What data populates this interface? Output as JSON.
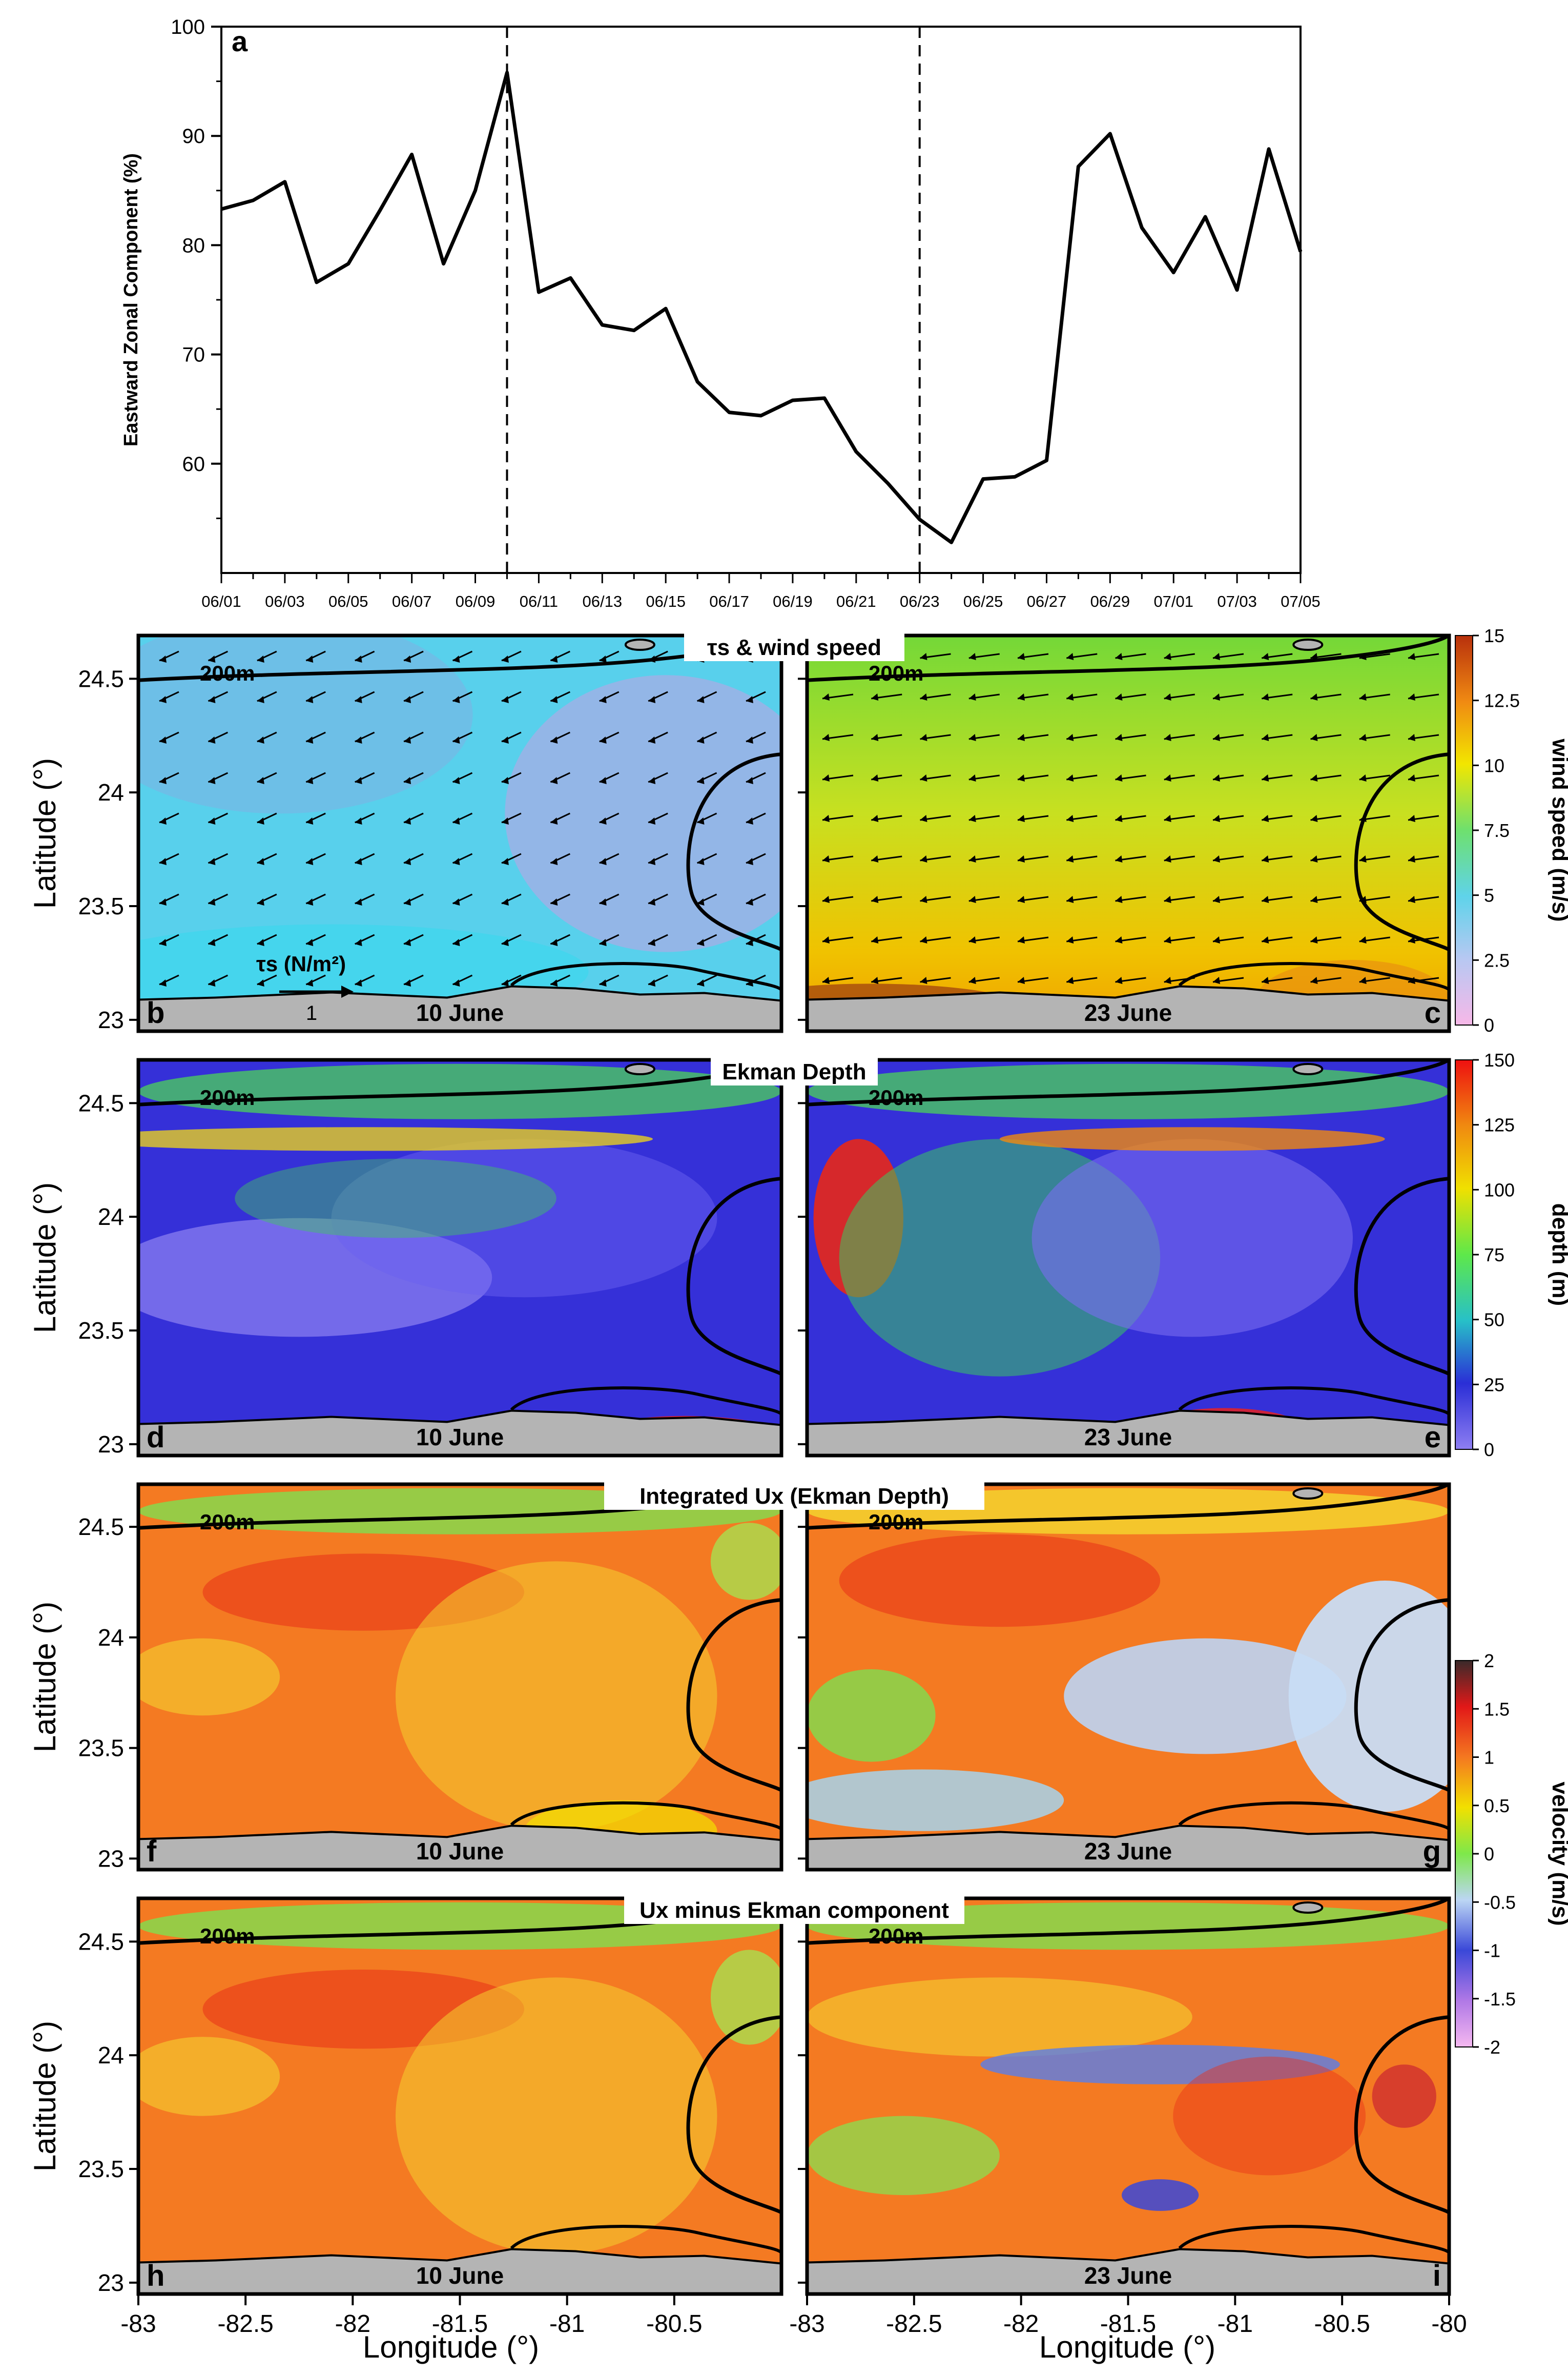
{
  "chart_data": [
    {
      "panel": "a",
      "type": "line",
      "ylabel": "Eastward Zonal Component  (%)",
      "ylim": [
        50,
        100
      ],
      "yticks": [
        "60",
        "70",
        "80",
        "90",
        "100"
      ],
      "xtick_labels": [
        "06/01",
        "06/03",
        "06/05",
        "06/07",
        "06/09",
        "06/11",
        "06/13",
        "06/15",
        "06/17",
        "06/19",
        "06/21",
        "06/23",
        "06/25",
        "06/27",
        "06/29",
        "07/01",
        "07/03",
        "07/05"
      ],
      "x": [
        "06/01",
        "06/02",
        "06/03",
        "06/04",
        "06/05",
        "06/06",
        "06/07",
        "06/08",
        "06/09",
        "06/10",
        "06/11",
        "06/12",
        "06/13",
        "06/14",
        "06/15",
        "06/16",
        "06/17",
        "06/18",
        "06/19",
        "06/20",
        "06/21",
        "06/22",
        "06/23",
        "06/24",
        "06/25",
        "06/26",
        "06/27",
        "06/28",
        "06/29",
        "06/30",
        "07/01",
        "07/02",
        "07/03",
        "07/04",
        "07/05"
      ],
      "series": [
        {
          "values": [
            83.3,
            84.1,
            85.8,
            76.6,
            78.3,
            83.2,
            88.3,
            78.3,
            85.0,
            95.8,
            75.7,
            77.0,
            72.7,
            72.2,
            74.2,
            67.5,
            64.7,
            64.4,
            65.8,
            66.0,
            61.1,
            58.2,
            54.9,
            52.8,
            58.6,
            58.8,
            60.3,
            87.2,
            90.2,
            81.6,
            77.5,
            82.6,
            75.9,
            88.8,
            79.4
          ]
        }
      ],
      "vlines": [
        "06/10",
        "06/23"
      ],
      "grid": false
    },
    {
      "type": "heatmap",
      "title": "τs & wind speed",
      "panels": [
        {
          "letter": "b",
          "date": "10 June"
        },
        {
          "letter": "c",
          "date": "23 June"
        }
      ],
      "isobath": "200m",
      "vector_legend": {
        "label": "τs (N/m²)",
        "scale": "1"
      },
      "colorbar": {
        "label": "wind speed (m/s)",
        "range": [
          0,
          15
        ],
        "ticks": [
          "0",
          "2.5",
          "5",
          "7.5",
          "10",
          "12.5",
          "15"
        ]
      }
    },
    {
      "type": "heatmap",
      "title": "Ekman Depth",
      "panels": [
        {
          "letter": "d",
          "date": "10 June"
        },
        {
          "letter": "e",
          "date": "23 June"
        }
      ],
      "isobath": "200m",
      "colorbar": {
        "label": "depth (m)",
        "range": [
          0,
          150
        ],
        "ticks": [
          "0",
          "25",
          "50",
          "75",
          "100",
          "125",
          "150"
        ]
      }
    },
    {
      "type": "heatmap",
      "title": "Integrated Ux (Ekman Depth)",
      "panels": [
        {
          "letter": "f",
          "date": "10 June"
        },
        {
          "letter": "g",
          "date": "23 June"
        }
      ],
      "isobath": "200m",
      "colorbar": {
        "label": "velocity (m/s)",
        "range": [
          -2,
          2
        ],
        "ticks": [
          "-2",
          "-1.5",
          "-1",
          "-0.5",
          "0",
          "0.5",
          "1",
          "1.5",
          "2"
        ]
      }
    },
    {
      "type": "heatmap",
      "title": "Ux minus Ekman component",
      "panels": [
        {
          "letter": "h",
          "date": "10 June"
        },
        {
          "letter": "i",
          "date": "23 June"
        }
      ],
      "isobath": "200m"
    }
  ],
  "map_axes": {
    "ylabel": "Latitude (°)",
    "xlabel": "Longitude (°)",
    "lat_ticks": [
      "23",
      "23.5",
      "24",
      "24.5"
    ],
    "lon_ticks_left": [
      "-83",
      "-82.5",
      "-82",
      "-81.5",
      "-81",
      "-80.5"
    ],
    "lon_ticks_right": [
      "-83",
      "-82.5",
      "-82",
      "-81.5",
      "-81",
      "-80.5",
      "-80"
    ]
  },
  "colors": {
    "wind_low": "#5fd3ea",
    "wind_high": "#f0b400",
    "depth_low": "#6d5cf0",
    "depth_mid": "#2e33d6",
    "depth_high": "#e01010",
    "velocity_pos": "#f47820",
    "velocity_zero": "#8ee84a",
    "velocity_neg": "#bcd4f4",
    "land": "#b4b4b4"
  }
}
